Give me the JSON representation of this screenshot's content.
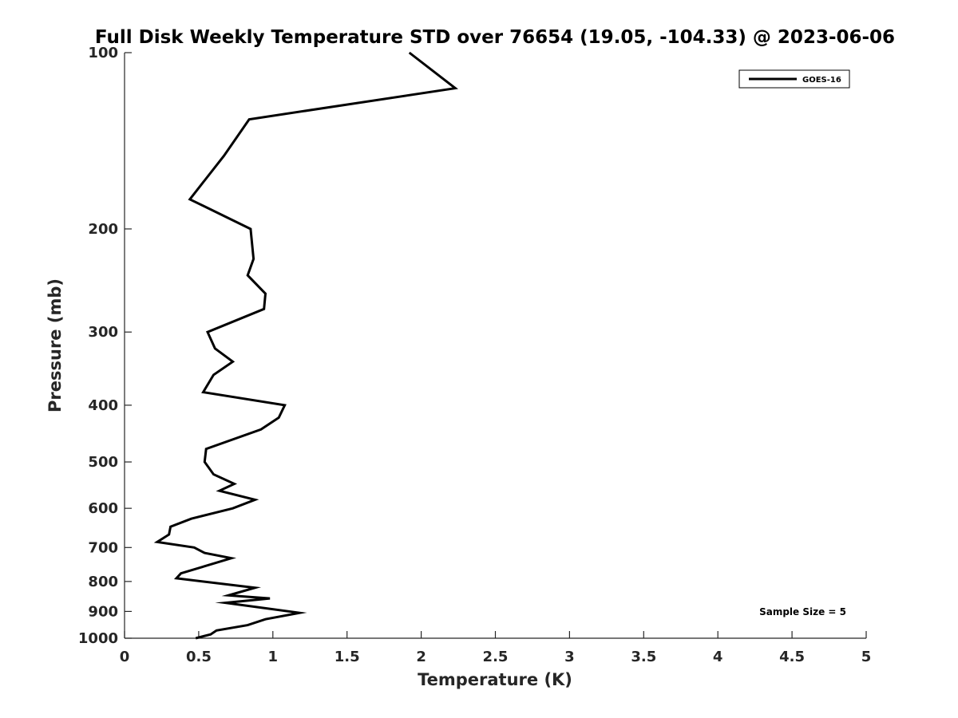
{
  "chart_data": {
    "type": "line",
    "title": "Full Disk Weekly Temperature STD over 76654 (19.05, -104.33) @ 2023-06-06",
    "xlabel": "Temperature (K)",
    "ylabel": "Pressure (mb)",
    "xlim": [
      0,
      5
    ],
    "ylim": [
      100,
      1000
    ],
    "y_scale": "log",
    "y_reversed": true,
    "x_ticks": [
      "0",
      "0.5",
      "1",
      "1.5",
      "2",
      "2.5",
      "3",
      "3.5",
      "4",
      "4.5",
      "5"
    ],
    "y_ticks": [
      "100",
      "200",
      "300",
      "400",
      "500",
      "600",
      "700",
      "800",
      "900",
      "1000"
    ],
    "grid": false,
    "legend_position": "top-right",
    "annotation": "Sample Size = 5",
    "series": [
      {
        "name": "GOES-16",
        "color": "#000000",
        "points": [
          [
            1.92,
            100
          ],
          [
            2.23,
            115
          ],
          [
            0.84,
            130
          ],
          [
            0.67,
            150
          ],
          [
            0.44,
            178
          ],
          [
            0.85,
            200
          ],
          [
            0.87,
            225
          ],
          [
            0.83,
            240
          ],
          [
            0.95,
            258
          ],
          [
            0.94,
            274
          ],
          [
            0.56,
            300
          ],
          [
            0.61,
            320
          ],
          [
            0.73,
            337
          ],
          [
            0.6,
            355
          ],
          [
            0.53,
            380
          ],
          [
            1.08,
            400
          ],
          [
            1.04,
            420
          ],
          [
            0.92,
            440
          ],
          [
            0.55,
            475
          ],
          [
            0.54,
            500
          ],
          [
            0.6,
            525
          ],
          [
            0.74,
            545
          ],
          [
            0.64,
            560
          ],
          [
            0.88,
            580
          ],
          [
            0.73,
            600
          ],
          [
            0.45,
            625
          ],
          [
            0.31,
            645
          ],
          [
            0.3,
            665
          ],
          [
            0.22,
            685
          ],
          [
            0.47,
            700
          ],
          [
            0.54,
            715
          ],
          [
            0.72,
            730
          ],
          [
            0.38,
            775
          ],
          [
            0.35,
            790
          ],
          [
            0.88,
            820
          ],
          [
            0.7,
            845
          ],
          [
            0.98,
            855
          ],
          [
            0.68,
            870
          ],
          [
            1.18,
            905
          ],
          [
            0.95,
            928
          ],
          [
            0.83,
            950
          ],
          [
            0.62,
            970
          ],
          [
            0.58,
            985
          ],
          [
            0.48,
            1000
          ]
        ]
      }
    ]
  }
}
